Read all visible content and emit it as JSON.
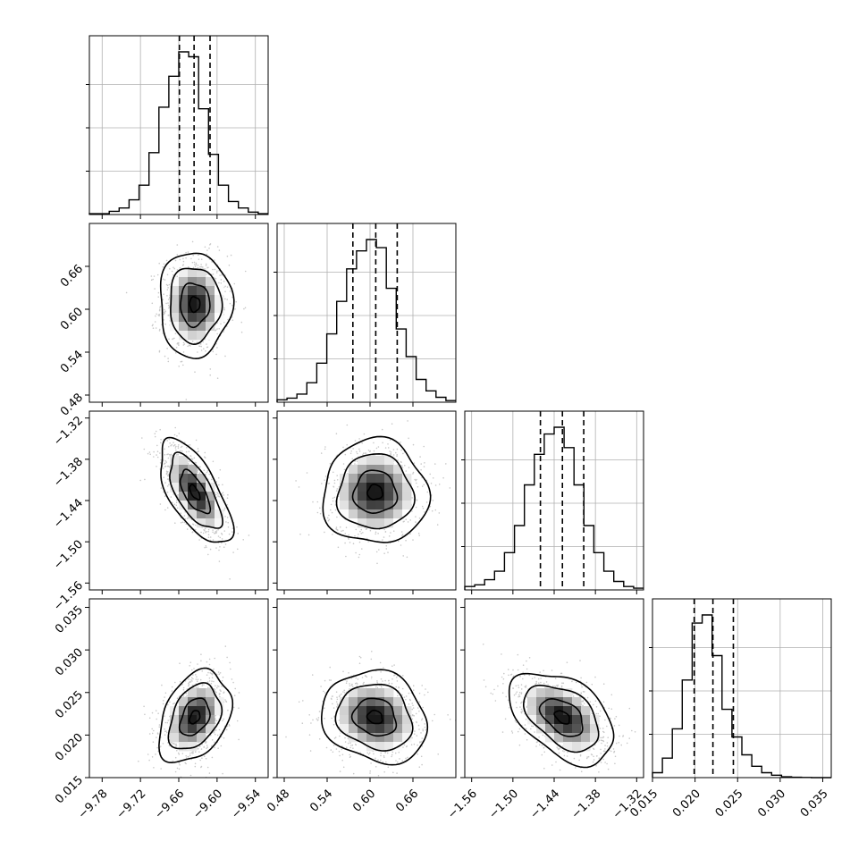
{
  "chart_data": {
    "type": "corner",
    "grid": true,
    "parameters": [
      {
        "range": [
          -9.8,
          -9.52
        ],
        "ticks": [
          -9.78,
          -9.72,
          -9.66,
          -9.6,
          -9.54
        ],
        "tick_labels": [
          "−9.78",
          "−9.72",
          "−9.66",
          "−9.60",
          "−9.54"
        ],
        "quantiles": [
          -9.659,
          -9.636,
          -9.611
        ],
        "mean": -9.635,
        "sd": 0.023
      },
      {
        "range": [
          0.47,
          0.72
        ],
        "ticks": [
          0.48,
          0.54,
          0.6,
          0.66
        ],
        "tick_labels": [
          "0.48",
          "0.54",
          "0.60",
          "0.66"
        ],
        "quantiles": [
          0.576,
          0.608,
          0.638
        ],
        "mean": 0.607,
        "sd": 0.03
      },
      {
        "range": [
          -1.57,
          -1.31
        ],
        "ticks": [
          -1.56,
          -1.5,
          -1.44,
          -1.38,
          -1.32
        ],
        "tick_labels": [
          "−1.56",
          "−1.50",
          "−1.44",
          "−1.38",
          "−1.32"
        ],
        "quantiles": [
          -1.46,
          -1.428,
          -1.397
        ],
        "mean": -1.428,
        "sd": 0.031
      },
      {
        "range": [
          0.015,
          0.036
        ],
        "ticks": [
          0.015,
          0.02,
          0.025,
          0.03,
          0.035
        ],
        "tick_labels": [
          "0.015",
          "0.020",
          "0.025",
          "0.030",
          "0.035"
        ],
        "quantiles": [
          0.0199,
          0.0221,
          0.0245
        ],
        "mean": 0.0221,
        "sd": 0.0022
      }
    ],
    "correlations": [
      [
        1,
        0,
        -0.65,
        0.35
      ],
      [
        0,
        1,
        0,
        -0.15
      ],
      [
        -0.65,
        0,
        1,
        -0.45
      ],
      [
        0.35,
        -0.15,
        -0.45,
        1
      ]
    ],
    "hist_1d": [
      [
        0.5,
        0.5,
        2,
        4,
        9,
        18,
        38,
        66,
        85,
        100,
        97,
        65,
        37,
        18,
        8,
        4,
        1.5,
        0.5
      ],
      [
        1.5,
        2.5,
        5,
        12,
        24,
        42,
        62,
        82,
        93,
        100,
        95,
        70,
        45,
        28,
        14,
        7,
        3,
        1
      ],
      [
        2,
        3,
        6,
        11,
        22,
        38,
        62,
        80,
        92,
        96,
        84,
        62,
        38,
        22,
        11,
        5,
        2,
        1
      ],
      [
        3,
        12,
        30,
        60,
        95,
        100,
        75,
        42,
        25,
        14,
        7,
        3,
        1.5,
        0.5,
        0.2,
        0.1,
        0,
        0
      ]
    ],
    "quantile_style": "dashed",
    "density_style": "2D histogram with contours and scatter"
  }
}
